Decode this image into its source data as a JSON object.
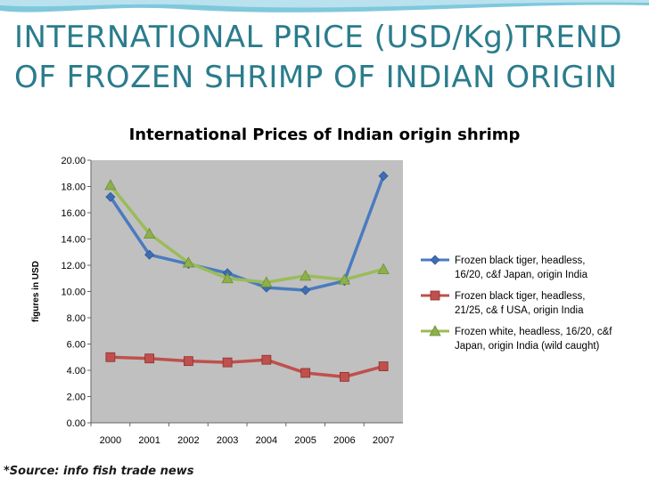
{
  "slide": {
    "title_line1": "INTERNATIONAL PRICE (USD/Kg)TREND",
    "title_line2": "OF FROZEN SHRIMP OF INDIAN ORIGIN",
    "source": "*Source: info fish trade news",
    "colors": {
      "title": "#2a7c8c",
      "plot_bg": "#c0c0c0",
      "decoration": "#7fc8dc"
    }
  },
  "chart_data": {
    "type": "line",
    "title": "International Prices of Indian origin shrimp",
    "xlabel": "",
    "ylabel": "figures in USD",
    "categories": [
      "2000",
      "2001",
      "2002",
      "2003",
      "2004",
      "2005",
      "2006",
      "2007"
    ],
    "ylim": [
      0,
      20
    ],
    "yticks": [
      "0.00",
      "2.00",
      "4.00",
      "6.00",
      "8.00",
      "10.00",
      "12.00",
      "14.00",
      "16.00",
      "18.00",
      "20.00"
    ],
    "grid": false,
    "legend_position": "right",
    "series": [
      {
        "name_lines": [
          "Frozen black tiger, headless,",
          "16/20, c&f Japan, origin India"
        ],
        "values": [
          17.2,
          12.8,
          12.1,
          11.4,
          10.3,
          10.1,
          10.8,
          18.8
        ],
        "color": "#4a7bbf",
        "marker": "diamond",
        "marker_color": "#3d6db5"
      },
      {
        "name_lines": [
          "Frozen black tiger, headless,",
          "21/25, c& f USA, origin India"
        ],
        "values": [
          5.0,
          4.9,
          4.7,
          4.6,
          4.8,
          3.8,
          3.5,
          4.3
        ],
        "color": "#c0504d",
        "marker": "square",
        "marker_color": "#c0504d"
      },
      {
        "name_lines": [
          "Frozen white, headless, 16/20, c&f",
          "Japan, origin India (wild caught)"
        ],
        "values": [
          18.1,
          14.4,
          12.2,
          11.0,
          10.7,
          11.2,
          10.9,
          11.7
        ],
        "color": "#9bbb59",
        "marker": "triangle",
        "marker_color": "#8db04a"
      }
    ]
  }
}
